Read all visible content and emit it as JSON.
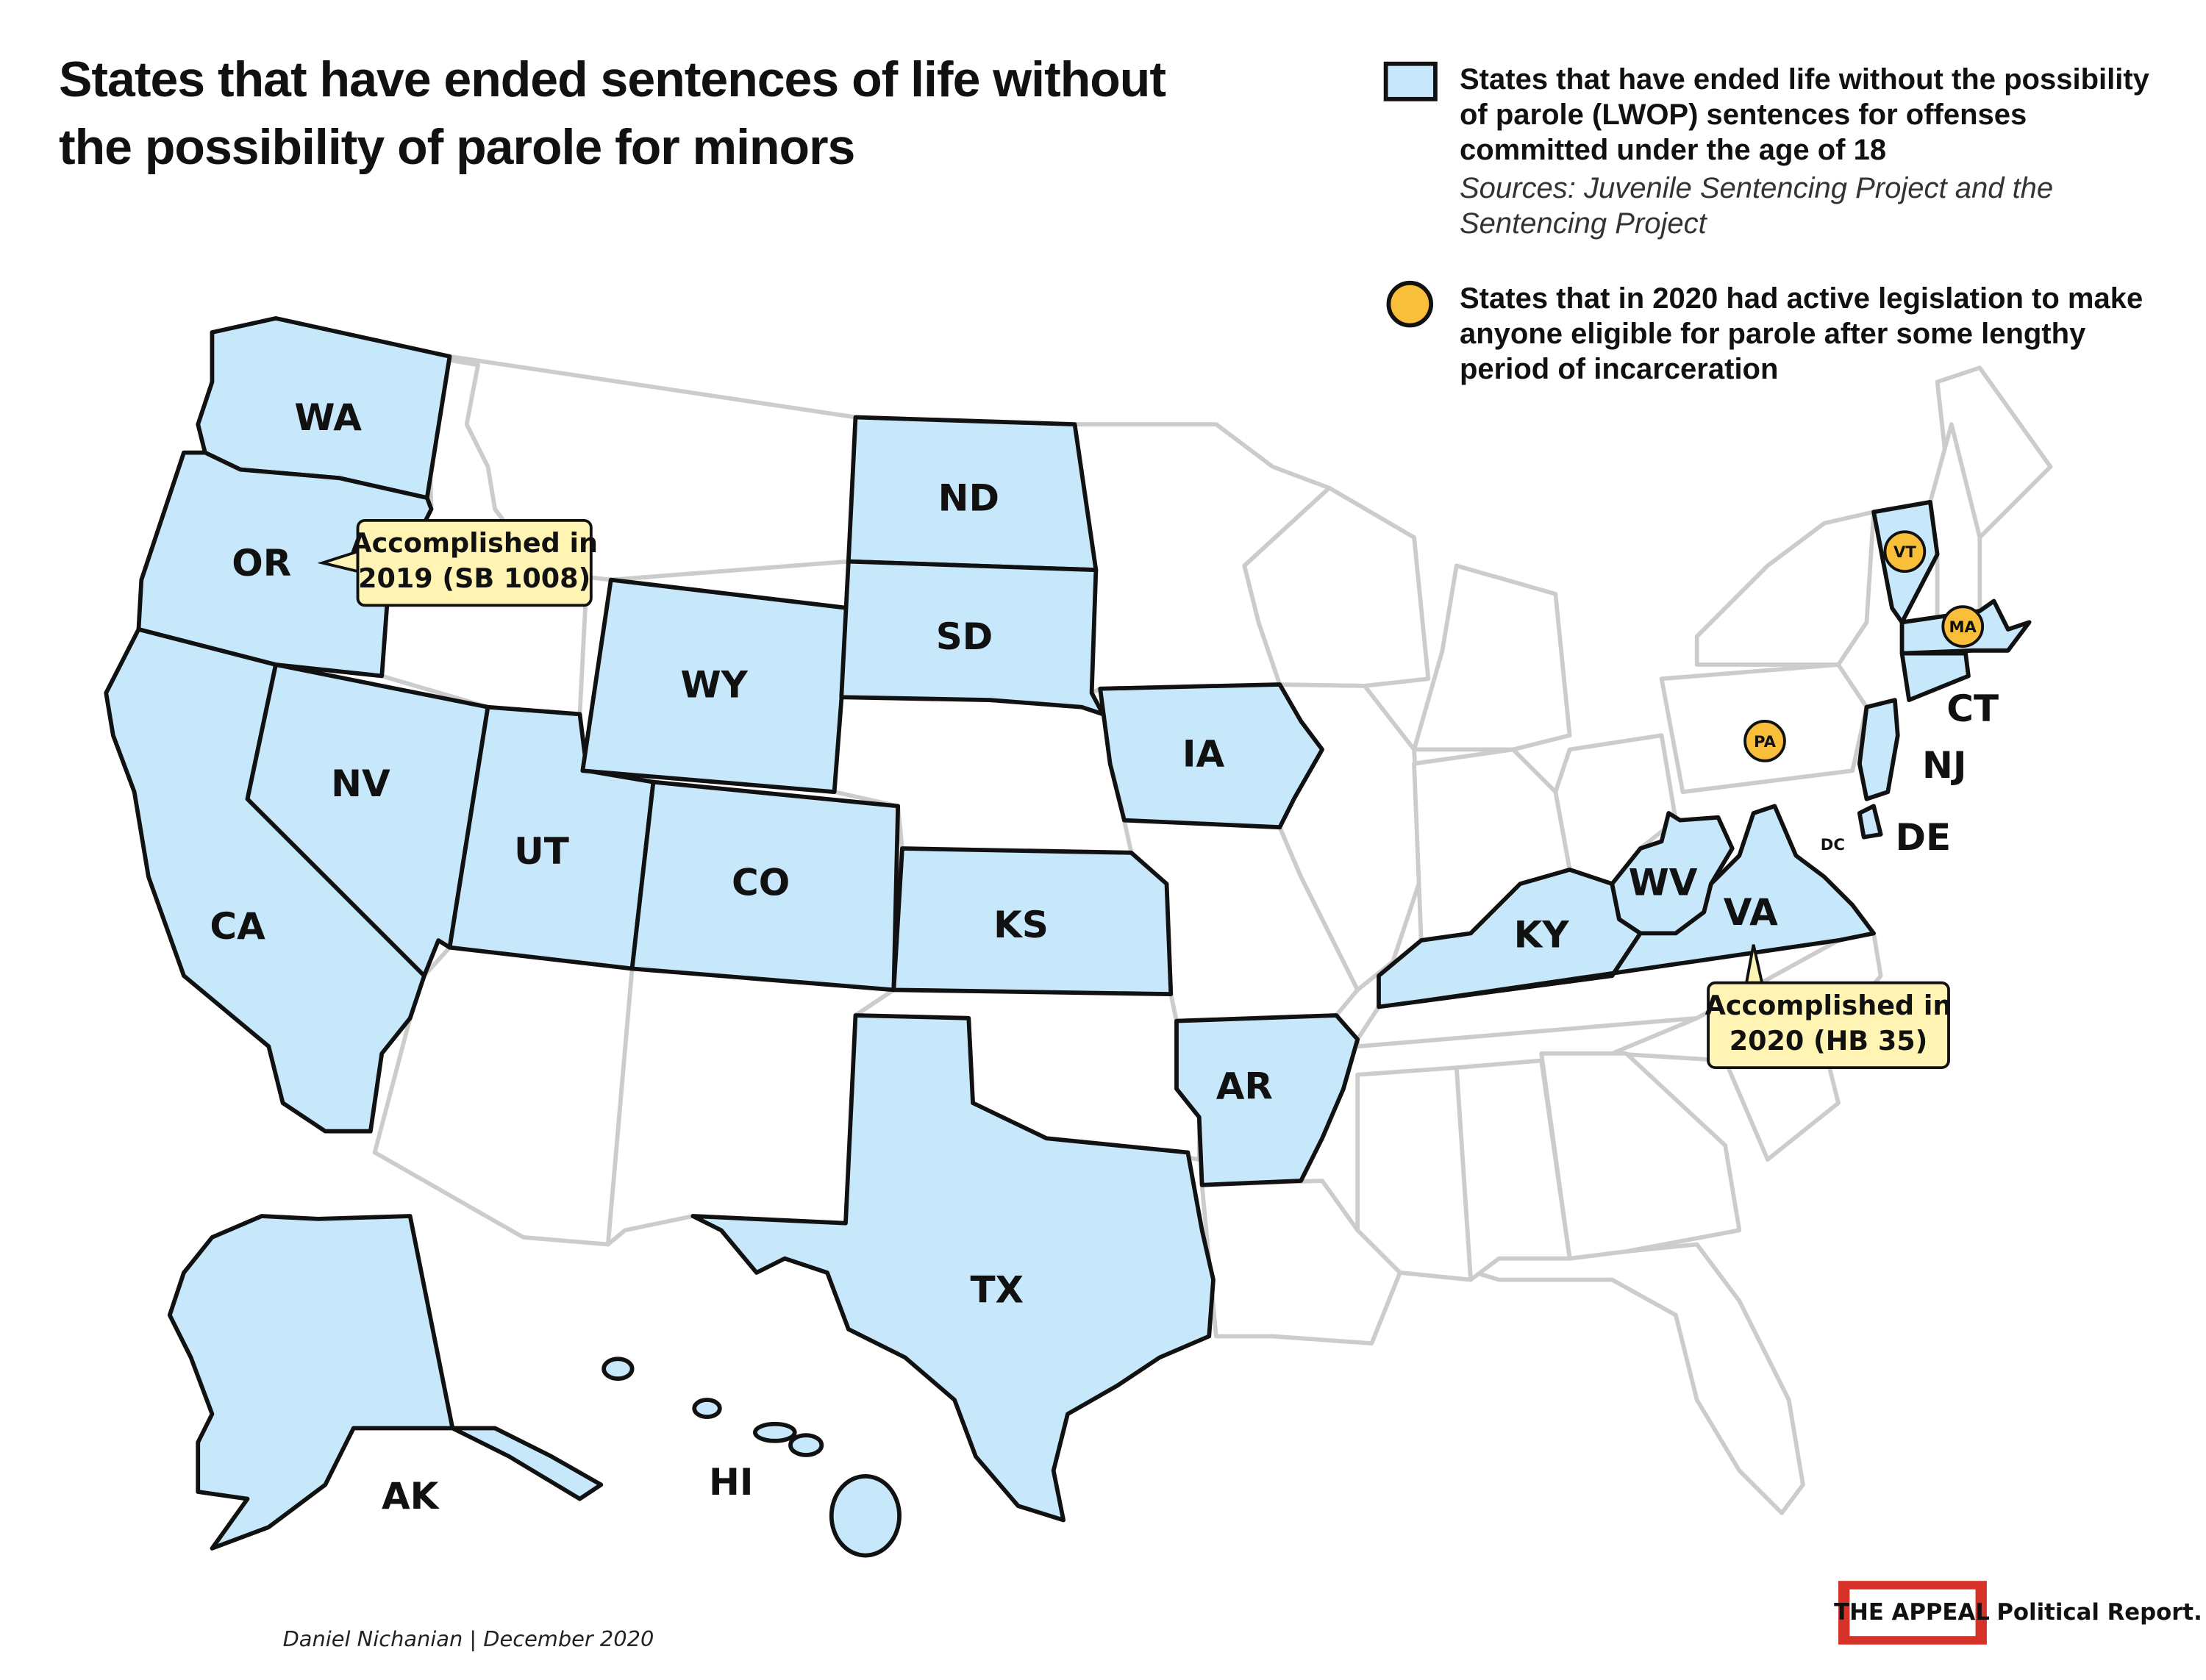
{
  "title": "States that have ended sentences of life without the possibility of parole for minors",
  "legend": [
    {
      "label": "States that have ended life without the possibility of parole (LWOP) sentences for offenses committed under the age of 18",
      "note": "Sources: Juvenile Sentencing Project and the Sentencing Project"
    },
    {
      "label": "States that in 2020 had active legislation to make anyone eligible for parole after some lengthy period of incarceration"
    }
  ],
  "states": [
    {
      "label": "WA"
    },
    {
      "label": "OR"
    },
    {
      "label": "CA"
    },
    {
      "label": "NV"
    },
    {
      "label": "UT"
    },
    {
      "label": "WY"
    },
    {
      "label": "CO"
    },
    {
      "label": "ND"
    },
    {
      "label": "SD"
    },
    {
      "label": "KS"
    },
    {
      "label": "IA"
    },
    {
      "label": "TX"
    },
    {
      "label": "AR"
    },
    {
      "label": "KY"
    },
    {
      "label": "WV"
    },
    {
      "label": "VA"
    },
    {
      "label": "CT"
    },
    {
      "label": "NJ"
    },
    {
      "label": "DE"
    },
    {
      "label": "AK"
    },
    {
      "label": "HI"
    },
    {
      "label": "DC"
    }
  ],
  "markers": [
    {
      "label": "VT"
    },
    {
      "label": "MA"
    },
    {
      "label": "PA"
    }
  ],
  "annotations": [
    {
      "lines": [
        "Accomplished in",
        "2019 (SB 1008)"
      ]
    },
    {
      "lines": [
        "Accomplished in",
        "2020 (HB 35)"
      ]
    }
  ],
  "credit": "Daniel Nichanian | December 2020",
  "logo": {
    "name": "THE APPEAL",
    "tagline": "Political Report."
  }
}
